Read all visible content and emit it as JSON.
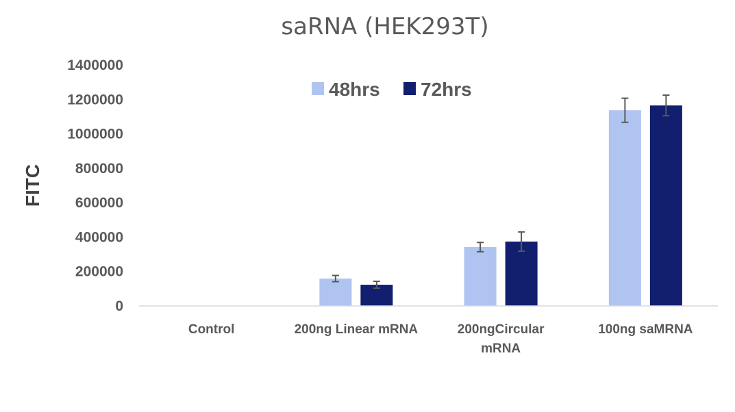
{
  "chart_data": {
    "type": "bar",
    "title": "saRNA (HEK293T)",
    "xlabel": "",
    "ylabel": "FITC",
    "ylim": [
      0,
      1400000
    ],
    "yticks": [
      0,
      200000,
      400000,
      600000,
      800000,
      1000000,
      1200000,
      1400000
    ],
    "ytick_labels": [
      "0",
      "200000",
      "400000",
      "600000",
      "800000",
      "1000000",
      "1200000",
      "1400000"
    ],
    "categories": [
      [
        "Control"
      ],
      [
        "200ng Linear mRNA"
      ],
      [
        "200ngCircular",
        "mRNA"
      ],
      [
        "100ng saMRNA"
      ]
    ],
    "series": [
      {
        "name": "48hrs",
        "color": "#b0c4f2",
        "values": [
          0,
          159000,
          342000,
          1137000
        ],
        "errors": [
          0,
          18000,
          27000,
          70000
        ]
      },
      {
        "name": "72hrs",
        "color": "#121f6e",
        "values": [
          0,
          123000,
          374000,
          1165000
        ],
        "errors": [
          0,
          20000,
          56000,
          60000
        ]
      }
    ],
    "legend_position": "top-center",
    "grid": false,
    "error_bar_color": "#595959"
  }
}
